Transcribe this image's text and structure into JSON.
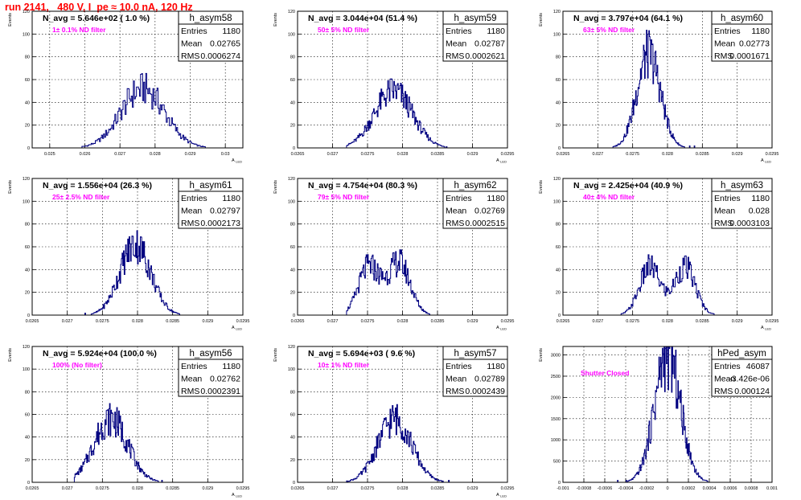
{
  "page_title": "run 2141,   480 V, I_pe ≈ 10.0 nA, 120 Hz",
  "colors": {
    "title": "#ff0000",
    "annotation": "#ff00ff",
    "histogram": "#000080",
    "frame": "#000000"
  },
  "chart_data": [
    {
      "type": "histogram",
      "name": "h_asym58",
      "summary": "N_avg = 5.646e+02 ( 1.0 %)",
      "annotation": "1± 0.1% ND filter",
      "stats": [
        [
          "Entries",
          "1180"
        ],
        [
          "Mean",
          "0.02765"
        ],
        [
          "RMS",
          "0.0006274"
        ]
      ],
      "ylabel": "Events",
      "xlabel": "A_LED",
      "xlim": [
        0.0245,
        0.0305
      ],
      "ylim": [
        0,
        120
      ],
      "xticks": [
        [
          "0.025",
          0.025
        ],
        [
          "0.026",
          0.026
        ],
        [
          "0.027",
          0.027
        ],
        [
          "0.028",
          0.028
        ],
        [
          "0.029",
          0.029
        ],
        [
          "0.03",
          0.03
        ]
      ],
      "yticks": [
        [
          "0",
          0
        ],
        [
          "20",
          20
        ],
        [
          "40",
          40
        ],
        [
          "60",
          60
        ],
        [
          "80",
          80
        ],
        [
          "100",
          100
        ],
        [
          "120",
          120
        ]
      ],
      "bins": 140,
      "hist_range": [
        0.0258,
        0.0299
      ],
      "peaks": [
        [
          0.02765,
          0.00062,
          52
        ]
      ]
    },
    {
      "type": "histogram",
      "name": "h_asym59",
      "summary": "N_avg = 3.044e+04 (51.4 %)",
      "annotation": "50± 5% ND filter",
      "stats": [
        [
          "Entries",
          "1180"
        ],
        [
          "Mean",
          "0.02787"
        ],
        [
          "RMS",
          "0.0002621"
        ]
      ],
      "ylabel": "Events",
      "xlabel": "A_LED",
      "xlim": [
        0.0265,
        0.0295
      ],
      "ylim": [
        0,
        120
      ],
      "xticks": [
        [
          "0.0265",
          0.0265
        ],
        [
          "0.027",
          0.027
        ],
        [
          "0.0275",
          0.0275
        ],
        [
          "0.028",
          0.028
        ],
        [
          "0.0285",
          0.0285
        ],
        [
          "0.029",
          0.029
        ],
        [
          "0.0295",
          0.0295
        ]
      ],
      "yticks": [
        [
          "0",
          0
        ],
        [
          "20",
          20
        ],
        [
          "40",
          40
        ],
        [
          "60",
          60
        ],
        [
          "80",
          80
        ],
        [
          "100",
          100
        ],
        [
          "120",
          120
        ]
      ],
      "bins": 140,
      "hist_range": [
        0.0272,
        0.0287
      ],
      "peaks": [
        [
          0.02787,
          0.00027,
          50
        ]
      ]
    },
    {
      "type": "histogram",
      "name": "h_asym60",
      "summary": "N_avg = 3.797e+04 (64.1 %)",
      "annotation": "63± 5% ND filter",
      "stats": [
        [
          "Entries",
          "1180"
        ],
        [
          "Mean",
          "0.02773"
        ],
        [
          "RMS",
          "0.0001671"
        ]
      ],
      "ylabel": "Events",
      "xlabel": "A_LED",
      "xlim": [
        0.0265,
        0.0295
      ],
      "ylim": [
        0,
        120
      ],
      "xticks": [
        [
          "0.0265",
          0.0265
        ],
        [
          "0.027",
          0.027
        ],
        [
          "0.0275",
          0.0275
        ],
        [
          "0.028",
          0.028
        ],
        [
          "0.0285",
          0.0285
        ],
        [
          "0.029",
          0.029
        ],
        [
          "0.0295",
          0.0295
        ]
      ],
      "yticks": [
        [
          "0",
          0
        ],
        [
          "20",
          20
        ],
        [
          "40",
          40
        ],
        [
          "60",
          60
        ],
        [
          "80",
          80
        ],
        [
          "100",
          100
        ],
        [
          "120",
          120
        ]
      ],
      "bins": 140,
      "hist_range": [
        0.0272,
        0.0284
      ],
      "peaks": [
        [
          0.02773,
          0.00017,
          82
        ]
      ]
    },
    {
      "type": "histogram",
      "name": "h_asym61",
      "summary": "N_avg = 1.556e+04 (26.3 %)",
      "annotation": "25± 2.5% ND filter",
      "stats": [
        [
          "Entries",
          "1180"
        ],
        [
          "Mean",
          "0.02797"
        ],
        [
          "RMS",
          "0.0002173"
        ]
      ],
      "ylabel": "Events",
      "xlabel": "A_LED",
      "xlim": [
        0.0265,
        0.0295
      ],
      "ylim": [
        0,
        120
      ],
      "xticks": [
        [
          "0.0265",
          0.0265
        ],
        [
          "0.027",
          0.027
        ],
        [
          "0.0275",
          0.0275
        ],
        [
          "0.028",
          0.028
        ],
        [
          "0.0285",
          0.0285
        ],
        [
          "0.029",
          0.029
        ],
        [
          "0.0295",
          0.0295
        ]
      ],
      "yticks": [
        [
          "0",
          0
        ],
        [
          "20",
          20
        ],
        [
          "40",
          40
        ],
        [
          "60",
          60
        ],
        [
          "80",
          80
        ],
        [
          "100",
          100
        ],
        [
          "120",
          120
        ]
      ],
      "bins": 140,
      "hist_range": [
        0.0272,
        0.0286
      ],
      "peaks": [
        [
          0.02797,
          0.00022,
          62
        ]
      ]
    },
    {
      "type": "histogram",
      "name": "h_asym62",
      "summary": "N_avg = 4.754e+04 (80.3 %)",
      "annotation": "79± 5% ND filter",
      "stats": [
        [
          "Entries",
          "1180"
        ],
        [
          "Mean",
          "0.02769"
        ],
        [
          "RMS",
          "0.0002515"
        ]
      ],
      "ylabel": "Events",
      "xlabel": "A_LED",
      "xlim": [
        0.0265,
        0.0295
      ],
      "ylim": [
        0,
        120
      ],
      "xticks": [
        [
          "0.0265",
          0.0265
        ],
        [
          "0.027",
          0.027
        ],
        [
          "0.0275",
          0.0275
        ],
        [
          "0.028",
          0.028
        ],
        [
          "0.0285",
          0.0285
        ],
        [
          "0.029",
          0.029
        ],
        [
          "0.0295",
          0.0295
        ]
      ],
      "yticks": [
        [
          "0",
          0
        ],
        [
          "20",
          20
        ],
        [
          "40",
          40
        ],
        [
          "60",
          60
        ],
        [
          "80",
          80
        ],
        [
          "100",
          100
        ],
        [
          "120",
          120
        ]
      ],
      "bins": 140,
      "hist_range": [
        0.0272,
        0.0286
      ],
      "peaks": [
        [
          0.02752,
          0.00015,
          42
        ],
        [
          0.02795,
          0.00016,
          46
        ]
      ]
    },
    {
      "type": "histogram",
      "name": "h_asym63",
      "summary": "N_avg = 2.425e+04 (40.9 %)",
      "annotation": "40± 4% ND filter",
      "stats": [
        [
          "Entries",
          "1180"
        ],
        [
          "Mean",
          "0.028"
        ],
        [
          "RMS",
          "0.0003103"
        ]
      ],
      "ylabel": "Events",
      "xlabel": "A_LED",
      "xlim": [
        0.0265,
        0.0295
      ],
      "ylim": [
        0,
        120
      ],
      "xticks": [
        [
          "0.0265",
          0.0265
        ],
        [
          "0.027",
          0.027
        ],
        [
          "0.0275",
          0.0275
        ],
        [
          "0.028",
          0.028
        ],
        [
          "0.0285",
          0.0285
        ],
        [
          "0.029",
          0.029
        ],
        [
          "0.0295",
          0.0295
        ]
      ],
      "yticks": [
        [
          "0",
          0
        ],
        [
          "20",
          20
        ],
        [
          "40",
          40
        ],
        [
          "60",
          60
        ],
        [
          "80",
          80
        ],
        [
          "100",
          100
        ],
        [
          "120",
          120
        ]
      ],
      "bins": 140,
      "hist_range": [
        0.0272,
        0.0289
      ],
      "peaks": [
        [
          0.02775,
          0.00015,
          42
        ],
        [
          0.02825,
          0.00015,
          42
        ]
      ]
    },
    {
      "type": "histogram",
      "name": "h_asym56",
      "summary": "N_avg = 5.924e+04 (100.0 %)",
      "annotation": "100% (No filter)",
      "stats": [
        [
          "Entries",
          "1180"
        ],
        [
          "Mean",
          "0.02762"
        ],
        [
          "RMS",
          "0.0002391"
        ]
      ],
      "ylabel": "Events",
      "xlabel": "A_LED",
      "xlim": [
        0.0265,
        0.0295
      ],
      "ylim": [
        0,
        120
      ],
      "xticks": [
        [
          "0.0265",
          0.0265
        ],
        [
          "0.027",
          0.027
        ],
        [
          "0.0275",
          0.0275
        ],
        [
          "0.028",
          0.028
        ],
        [
          "0.0285",
          0.0285
        ],
        [
          "0.029",
          0.029
        ],
        [
          "0.0295",
          0.0295
        ]
      ],
      "yticks": [
        [
          "0",
          0
        ],
        [
          "20",
          20
        ],
        [
          "40",
          40
        ],
        [
          "60",
          60
        ],
        [
          "80",
          80
        ],
        [
          "100",
          100
        ],
        [
          "120",
          120
        ]
      ],
      "bins": 140,
      "hist_range": [
        0.0271,
        0.0284
      ],
      "peaks": [
        [
          0.02762,
          0.00024,
          56
        ]
      ]
    },
    {
      "type": "histogram",
      "name": "h_asym57",
      "summary": "N_avg = 5.694e+03 ( 9.6 %)",
      "annotation": "10± 1% ND filter",
      "stats": [
        [
          "Entries",
          "1180"
        ],
        [
          "Mean",
          "0.02789"
        ],
        [
          "RMS",
          "0.0002439"
        ]
      ],
      "ylabel": "Events",
      "xlabel": "A_LED",
      "xlim": [
        0.0265,
        0.0295
      ],
      "ylim": [
        0,
        120
      ],
      "xticks": [
        [
          "0.0265",
          0.0265
        ],
        [
          "0.027",
          0.027
        ],
        [
          "0.0275",
          0.0275
        ],
        [
          "0.028",
          0.028
        ],
        [
          "0.0285",
          0.0285
        ],
        [
          "0.029",
          0.029
        ],
        [
          "0.0295",
          0.0295
        ]
      ],
      "yticks": [
        [
          "0",
          0
        ],
        [
          "20",
          20
        ],
        [
          "40",
          40
        ],
        [
          "60",
          60
        ],
        [
          "80",
          80
        ],
        [
          "100",
          100
        ],
        [
          "120",
          120
        ]
      ],
      "bins": 140,
      "hist_range": [
        0.0272,
        0.0287
      ],
      "peaks": [
        [
          0.02789,
          0.00024,
          56
        ]
      ]
    },
    {
      "type": "histogram",
      "name": "hPed_asym",
      "summary": "",
      "annotation": "Shutter Closed",
      "stats": [
        [
          "Entries",
          "46087"
        ],
        [
          "Mean",
          "-3.426e-06"
        ],
        [
          "RMS",
          "0.000124"
        ]
      ],
      "ylabel": "Events",
      "xlabel": "",
      "xlim": [
        -0.001,
        0.001
      ],
      "ylim": [
        0,
        3200
      ],
      "xticks": [
        [
          "-0.001",
          -0.001
        ],
        [
          "-0.0008",
          -0.0008
        ],
        [
          "-0.0006",
          -0.0006
        ],
        [
          "-0.0004",
          -0.0004
        ],
        [
          "-0.0002",
          -0.0002
        ],
        [
          "0",
          0
        ],
        [
          "0.0002",
          0.0002
        ],
        [
          "0.0004",
          0.0004
        ],
        [
          "0.0006",
          0.0006
        ],
        [
          "0.0008",
          0.0008
        ],
        [
          "0.001",
          0.001
        ]
      ],
      "yticks": [
        [
          "0",
          0
        ],
        [
          "500",
          500
        ],
        [
          "1000",
          1000
        ],
        [
          "1500",
          1500
        ],
        [
          "2000",
          2000
        ],
        [
          "2500",
          2500
        ],
        [
          "3000",
          3000
        ]
      ],
      "bins": 200,
      "hist_range": [
        -0.00055,
        0.00055
      ],
      "peaks": [
        [
          0.0,
          0.000124,
          3000
        ]
      ]
    }
  ]
}
